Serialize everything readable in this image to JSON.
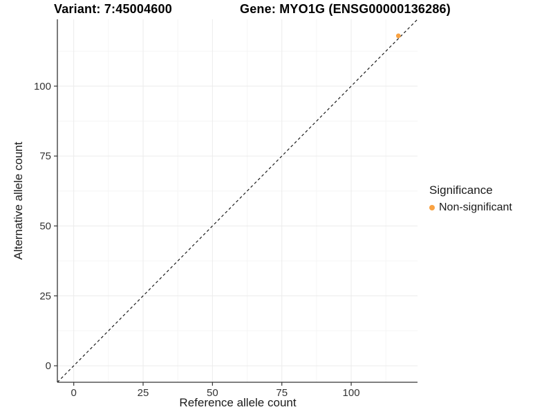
{
  "chart_data": {
    "type": "scatter",
    "titles": {
      "left": "Variant: 7:45004600",
      "right": "Gene: MYO1G (ENSG00000136286)"
    },
    "xlabel": "Reference allele count",
    "ylabel": "Alternative allele count",
    "xlim": [
      -5.9,
      123.9
    ],
    "ylim": [
      -5.9,
      123.9
    ],
    "x_ticks": [
      0,
      25,
      50,
      75,
      100
    ],
    "y_ticks": [
      0,
      25,
      50,
      75,
      100
    ],
    "x_minor_ticks": [
      12.5,
      37.5,
      62.5,
      87.5,
      112.5
    ],
    "y_minor_ticks": [
      12.5,
      37.5,
      62.5,
      87.5,
      112.5
    ],
    "grid": "major+minor",
    "reference_line": {
      "kind": "identity",
      "slope": 1,
      "intercept": 0,
      "style": "dashed",
      "color": "#1a1a1a"
    },
    "points": [
      {
        "x": 117,
        "y": 118,
        "label": "Non-significant",
        "color": "#F9A242"
      }
    ],
    "legend": {
      "title": "Significance",
      "position": "right",
      "entries": [
        {
          "label": "Non-significant",
          "color": "#F9A242",
          "marker": "circle"
        }
      ]
    },
    "style": {
      "background": "#ffffff",
      "grid_major_color": "#ebebeb",
      "grid_minor_color": "#f5f5f5",
      "axis_color": "#333333",
      "tick_color": "#333333",
      "tick_label_color": "#333333",
      "tick_label_size": 15
    }
  }
}
